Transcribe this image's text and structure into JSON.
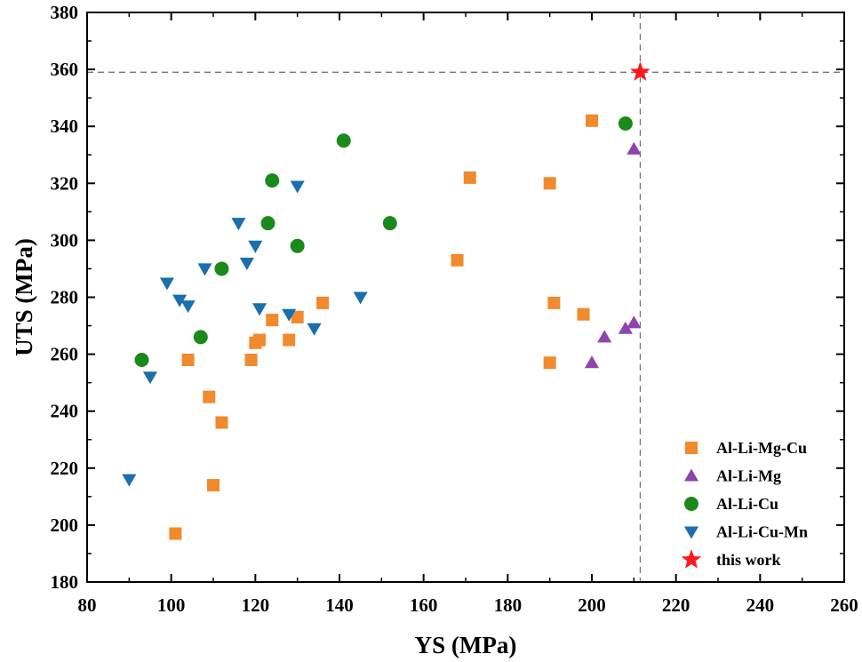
{
  "chart_data": {
    "type": "scatter",
    "title": "",
    "xlabel": "YS (MPa)",
    "ylabel": "UTS (MPa)",
    "xlim": [
      80,
      260
    ],
    "ylim": [
      180,
      380
    ],
    "xticks": [
      80,
      100,
      120,
      140,
      160,
      180,
      200,
      220,
      240,
      260
    ],
    "yticks": [
      180,
      200,
      220,
      240,
      260,
      280,
      300,
      320,
      340,
      360,
      380
    ],
    "grid": false,
    "legend_position": "bottom-right",
    "reference_lines": {
      "x": 211.5,
      "y": 359
    },
    "series": [
      {
        "name": "Al-Li-Mg-Cu",
        "marker": "square",
        "color": "#F08A2C",
        "points": [
          [
            101,
            197
          ],
          [
            110,
            214
          ],
          [
            112,
            236
          ],
          [
            109,
            245
          ],
          [
            104,
            258
          ],
          [
            119,
            258
          ],
          [
            120,
            264
          ],
          [
            121,
            265
          ],
          [
            124,
            272
          ],
          [
            128,
            265
          ],
          [
            130,
            273
          ],
          [
            136,
            278
          ],
          [
            168,
            293
          ],
          [
            171,
            322
          ],
          [
            190,
            320
          ],
          [
            191,
            278
          ],
          [
            190,
            257
          ],
          [
            198,
            274
          ],
          [
            200,
            342
          ]
        ]
      },
      {
        "name": "Al-Li-Mg",
        "marker": "triangle-up",
        "color": "#8E44AD",
        "points": [
          [
            200,
            257
          ],
          [
            203,
            266
          ],
          [
            208,
            269
          ],
          [
            210,
            271
          ],
          [
            210,
            332
          ]
        ]
      },
      {
        "name": "Al-Li-Cu",
        "marker": "circle",
        "color": "#1A8A1A",
        "points": [
          [
            93,
            258
          ],
          [
            107,
            266
          ],
          [
            112,
            290
          ],
          [
            123,
            306
          ],
          [
            124,
            321
          ],
          [
            130,
            298
          ],
          [
            141,
            335
          ],
          [
            152,
            306
          ],
          [
            208,
            341
          ]
        ]
      },
      {
        "name": "Al-Li-Cu-Mn",
        "marker": "triangle-down",
        "color": "#1A6FAD",
        "points": [
          [
            90,
            216
          ],
          [
            95,
            252
          ],
          [
            99,
            285
          ],
          [
            102,
            279
          ],
          [
            104,
            277
          ],
          [
            108,
            290
          ],
          [
            116,
            306
          ],
          [
            118,
            292
          ],
          [
            120,
            298
          ],
          [
            121,
            276
          ],
          [
            128,
            274
          ],
          [
            130,
            319
          ],
          [
            134,
            269
          ],
          [
            145,
            280
          ]
        ]
      },
      {
        "name": "this work",
        "marker": "star",
        "color": "#FF1A1A",
        "points": [
          [
            211.5,
            359
          ]
        ]
      }
    ]
  }
}
